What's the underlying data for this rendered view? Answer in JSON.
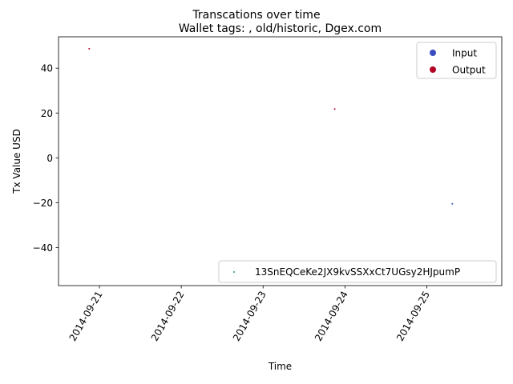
{
  "chart_data": {
    "type": "scatter",
    "suptitle": "Transcations over time",
    "title": "Wallet tags: , old/historic, Dgex.com",
    "xlabel": "Time",
    "ylabel": "Tx Value USD",
    "x_range": [
      "2014-09-20T12:00",
      "2014-09-25T22:00"
    ],
    "ylim": [
      -57,
      54
    ],
    "yticks": [
      -40,
      -20,
      0,
      20,
      40
    ],
    "xticks": [
      "2014-09-21",
      "2014-09-22",
      "2014-09-23",
      "2014-09-24",
      "2014-09-25"
    ],
    "grid": false,
    "legend_placement_types": "upper right",
    "legend_placement_address": "lower right",
    "legend_types": [
      {
        "label": "Input",
        "color": "#3b4cc0"
      },
      {
        "label": "Output",
        "color": "#b40426"
      }
    ],
    "legend_address": {
      "label": "13SnEQCeKe2JX9kvSSXxCt7UGsy2HJpumP",
      "color": "#1f9e89"
    },
    "series": [
      {
        "name": "Output",
        "color": "#b40426",
        "points": [
          {
            "x": "2014-09-20T21:00",
            "y": 48.7
          },
          {
            "x": "2014-09-23T21:00",
            "y": 21.8
          }
        ]
      },
      {
        "name": "Input",
        "color": "#3b4cc0",
        "points": [
          {
            "x": "2014-09-25T07:30",
            "y": -20.5
          }
        ]
      }
    ]
  }
}
